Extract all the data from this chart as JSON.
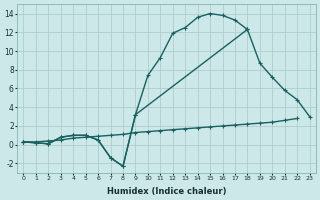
{
  "xlabel": "Humidex (Indice chaleur)",
  "bg_color": "#cce8e8",
  "grid_color": "#b0cccc",
  "line_color": "#1a6060",
  "xlim": [
    -0.5,
    23.5
  ],
  "ylim": [
    -3,
    15
  ],
  "xticks": [
    0,
    1,
    2,
    3,
    4,
    5,
    6,
    7,
    8,
    9,
    10,
    11,
    12,
    13,
    14,
    15,
    16,
    17,
    18,
    19,
    20,
    21,
    22,
    23
  ],
  "yticks": [
    -2,
    0,
    2,
    4,
    6,
    8,
    10,
    12,
    14
  ],
  "line1_x": [
    0,
    1,
    2,
    3,
    4,
    5,
    6,
    7,
    8,
    9,
    10,
    11,
    12,
    13,
    14,
    15,
    16,
    17,
    18
  ],
  "line1_y": [
    0.3,
    0.2,
    0.1,
    0.8,
    1.0,
    1.0,
    0.5,
    -1.4,
    -2.3,
    3.2,
    7.4,
    9.3,
    11.9,
    12.5,
    13.6,
    14.0,
    13.8,
    13.3,
    12.3
  ],
  "line2_x": [
    0,
    1,
    2,
    3,
    4,
    5,
    6,
    7,
    8,
    9,
    18,
    19,
    20,
    21,
    22,
    23
  ],
  "line2_y": [
    0.3,
    0.2,
    0.1,
    0.8,
    1.0,
    1.0,
    0.5,
    -1.4,
    -2.3,
    3.2,
    12.3,
    8.7,
    7.2,
    5.8,
    4.8,
    3.0
  ],
  "line3_x": [
    0,
    1,
    2,
    3,
    4,
    5,
    6,
    7,
    8,
    9,
    10,
    11,
    12,
    13,
    14,
    15,
    16,
    17,
    18,
    19,
    20,
    21,
    22
  ],
  "line3_y": [
    0.3,
    0.3,
    0.4,
    0.5,
    0.7,
    0.8,
    0.9,
    1.0,
    1.1,
    1.3,
    1.4,
    1.5,
    1.6,
    1.7,
    1.8,
    1.9,
    2.0,
    2.1,
    2.2,
    2.3,
    2.4,
    2.6,
    2.8
  ]
}
